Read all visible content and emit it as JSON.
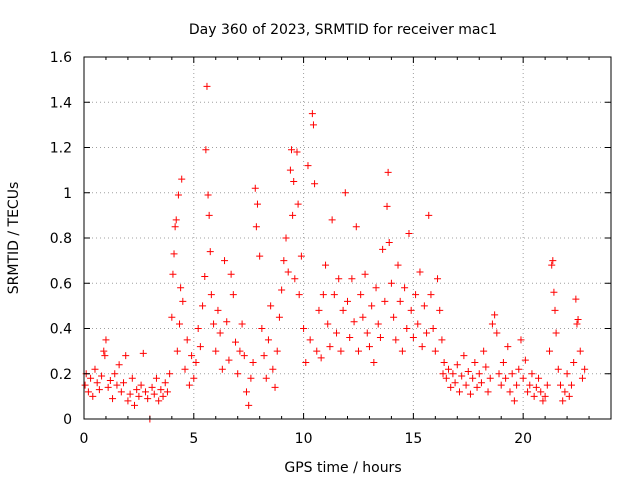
{
  "chart_data": {
    "type": "scatter",
    "title": "Day 360 of 2023, SRMTID for receiver mac1",
    "xlabel": "GPS time / hours",
    "ylabel": "SRMTID / TECUs",
    "xlim": [
      0,
      24
    ],
    "ylim": [
      0,
      1.6
    ],
    "x_ticks": [
      0,
      5,
      10,
      15,
      20
    ],
    "x_tick_labels": [
      "0",
      "5",
      "10",
      "15",
      "20"
    ],
    "y_ticks": [
      0,
      0.2,
      0.4,
      0.6,
      0.8,
      1,
      1.2,
      1.4,
      1.6
    ],
    "y_tick_labels": [
      "0",
      "0.2",
      "0.4",
      "0.6",
      "0.8",
      "1",
      "1.2",
      "1.4",
      "1.6"
    ],
    "grid": true,
    "marker": "+",
    "series": [
      {
        "name": "SRMTID",
        "color": "#ff0000",
        "points": [
          [
            0.05,
            0.15
          ],
          [
            0.1,
            0.2
          ],
          [
            0.2,
            0.12
          ],
          [
            0.3,
            0.18
          ],
          [
            0.4,
            0.1
          ],
          [
            0.5,
            0.22
          ],
          [
            0.6,
            0.16
          ],
          [
            0.7,
            0.13
          ],
          [
            0.8,
            0.19
          ],
          [
            0.9,
            0.3
          ],
          [
            0.95,
            0.28
          ],
          [
            1.0,
            0.35
          ],
          [
            1.1,
            0.14
          ],
          [
            1.2,
            0.17
          ],
          [
            1.3,
            0.09
          ],
          [
            1.4,
            0.2
          ],
          [
            1.5,
            0.15
          ],
          [
            1.6,
            0.24
          ],
          [
            1.7,
            0.12
          ],
          [
            1.8,
            0.16
          ],
          [
            1.9,
            0.28
          ],
          [
            2.0,
            0.08
          ],
          [
            2.1,
            0.11
          ],
          [
            2.2,
            0.18
          ],
          [
            2.3,
            0.06
          ],
          [
            2.4,
            0.13
          ],
          [
            2.5,
            0.1
          ],
          [
            2.6,
            0.15
          ],
          [
            2.7,
            0.29
          ],
          [
            2.8,
            0.12
          ],
          [
            2.9,
            0.09
          ],
          [
            3.0,
            0.0
          ],
          [
            3.1,
            0.14
          ],
          [
            3.2,
            0.11
          ],
          [
            3.3,
            0.18
          ],
          [
            3.4,
            0.08
          ],
          [
            3.5,
            0.13
          ],
          [
            3.6,
            0.1
          ],
          [
            3.7,
            0.16
          ],
          [
            3.8,
            0.12
          ],
          [
            3.9,
            0.2
          ],
          [
            4.0,
            0.45
          ],
          [
            4.05,
            0.64
          ],
          [
            4.1,
            0.73
          ],
          [
            4.15,
            0.85
          ],
          [
            4.2,
            0.88
          ],
          [
            4.25,
            0.3
          ],
          [
            4.3,
            0.99
          ],
          [
            4.35,
            0.42
          ],
          [
            4.4,
            0.58
          ],
          [
            4.45,
            1.06
          ],
          [
            4.5,
            0.52
          ],
          [
            4.6,
            0.22
          ],
          [
            4.7,
            0.35
          ],
          [
            4.8,
            0.15
          ],
          [
            4.9,
            0.28
          ],
          [
            5.0,
            0.18
          ],
          [
            5.1,
            0.25
          ],
          [
            5.2,
            0.4
          ],
          [
            5.3,
            0.32
          ],
          [
            5.4,
            0.5
          ],
          [
            5.5,
            0.63
          ],
          [
            5.55,
            1.19
          ],
          [
            5.6,
            1.47
          ],
          [
            5.65,
            0.99
          ],
          [
            5.7,
            0.9
          ],
          [
            5.75,
            0.74
          ],
          [
            5.8,
            0.55
          ],
          [
            5.9,
            0.42
          ],
          [
            6.0,
            0.3
          ],
          [
            6.1,
            0.48
          ],
          [
            6.2,
            0.38
          ],
          [
            6.3,
            0.22
          ],
          [
            6.4,
            0.7
          ],
          [
            6.5,
            0.43
          ],
          [
            6.6,
            0.26
          ],
          [
            6.7,
            0.64
          ],
          [
            6.8,
            0.55
          ],
          [
            6.9,
            0.34
          ],
          [
            7.0,
            0.2
          ],
          [
            7.1,
            0.3
          ],
          [
            7.2,
            0.42
          ],
          [
            7.3,
            0.28
          ],
          [
            7.4,
            0.12
          ],
          [
            7.5,
            0.06
          ],
          [
            7.6,
            0.18
          ],
          [
            7.7,
            0.25
          ],
          [
            7.8,
            1.02
          ],
          [
            7.85,
            0.85
          ],
          [
            7.9,
            0.95
          ],
          [
            8.0,
            0.72
          ],
          [
            8.1,
            0.4
          ],
          [
            8.2,
            0.28
          ],
          [
            8.3,
            0.18
          ],
          [
            8.4,
            0.35
          ],
          [
            8.5,
            0.5
          ],
          [
            8.6,
            0.22
          ],
          [
            8.7,
            0.14
          ],
          [
            8.8,
            0.3
          ],
          [
            8.9,
            0.45
          ],
          [
            9.0,
            0.57
          ],
          [
            9.1,
            0.7
          ],
          [
            9.2,
            0.8
          ],
          [
            9.3,
            0.65
          ],
          [
            9.4,
            1.1
          ],
          [
            9.45,
            1.19
          ],
          [
            9.5,
            0.9
          ],
          [
            9.55,
            1.05
          ],
          [
            9.6,
            0.62
          ],
          [
            9.7,
            1.18
          ],
          [
            9.75,
            0.95
          ],
          [
            9.8,
            0.55
          ],
          [
            9.9,
            0.72
          ],
          [
            10.0,
            0.4
          ],
          [
            10.1,
            0.25
          ],
          [
            10.2,
            1.12
          ],
          [
            10.3,
            0.35
          ],
          [
            10.4,
            1.35
          ],
          [
            10.45,
            1.3
          ],
          [
            10.5,
            1.04
          ],
          [
            10.6,
            0.3
          ],
          [
            10.7,
            0.48
          ],
          [
            10.8,
            0.27
          ],
          [
            10.9,
            0.55
          ],
          [
            11.0,
            0.68
          ],
          [
            11.1,
            0.42
          ],
          [
            11.2,
            0.32
          ],
          [
            11.3,
            0.88
          ],
          [
            11.4,
            0.55
          ],
          [
            11.5,
            0.38
          ],
          [
            11.6,
            0.62
          ],
          [
            11.7,
            0.3
          ],
          [
            11.8,
            0.48
          ],
          [
            11.9,
            1.0
          ],
          [
            12.0,
            0.52
          ],
          [
            12.1,
            0.36
          ],
          [
            12.2,
            0.62
          ],
          [
            12.3,
            0.43
          ],
          [
            12.4,
            0.85
          ],
          [
            12.5,
            0.3
          ],
          [
            12.6,
            0.55
          ],
          [
            12.7,
            0.45
          ],
          [
            12.8,
            0.64
          ],
          [
            12.9,
            0.38
          ],
          [
            13.0,
            0.32
          ],
          [
            13.1,
            0.5
          ],
          [
            13.2,
            0.25
          ],
          [
            13.3,
            0.58
          ],
          [
            13.4,
            0.42
          ],
          [
            13.5,
            0.36
          ],
          [
            13.6,
            0.75
          ],
          [
            13.7,
            0.52
          ],
          [
            13.8,
            0.94
          ],
          [
            13.85,
            1.09
          ],
          [
            13.9,
            0.78
          ],
          [
            14.0,
            0.6
          ],
          [
            14.1,
            0.45
          ],
          [
            14.2,
            0.35
          ],
          [
            14.3,
            0.68
          ],
          [
            14.4,
            0.52
          ],
          [
            14.5,
            0.3
          ],
          [
            14.6,
            0.58
          ],
          [
            14.7,
            0.4
          ],
          [
            14.8,
            0.82
          ],
          [
            14.9,
            0.48
          ],
          [
            15.0,
            0.36
          ],
          [
            15.1,
            0.55
          ],
          [
            15.2,
            0.42
          ],
          [
            15.3,
            0.65
          ],
          [
            15.4,
            0.32
          ],
          [
            15.5,
            0.5
          ],
          [
            15.6,
            0.38
          ],
          [
            15.7,
            0.9
          ],
          [
            15.8,
            0.55
          ],
          [
            15.9,
            0.4
          ],
          [
            16.0,
            0.3
          ],
          [
            16.1,
            0.62
          ],
          [
            16.2,
            0.48
          ],
          [
            16.3,
            0.35
          ],
          [
            16.35,
            0.2
          ],
          [
            16.4,
            0.25
          ],
          [
            16.5,
            0.18
          ],
          [
            16.6,
            0.22
          ],
          [
            16.7,
            0.14
          ],
          [
            16.8,
            0.2
          ],
          [
            16.9,
            0.16
          ],
          [
            17.0,
            0.24
          ],
          [
            17.1,
            0.12
          ],
          [
            17.2,
            0.19
          ],
          [
            17.3,
            0.28
          ],
          [
            17.4,
            0.15
          ],
          [
            17.5,
            0.21
          ],
          [
            17.6,
            0.11
          ],
          [
            17.7,
            0.18
          ],
          [
            17.8,
            0.25
          ],
          [
            17.9,
            0.14
          ],
          [
            18.0,
            0.2
          ],
          [
            18.1,
            0.16
          ],
          [
            18.2,
            0.3
          ],
          [
            18.3,
            0.23
          ],
          [
            18.4,
            0.12
          ],
          [
            18.5,
            0.18
          ],
          [
            18.6,
            0.42
          ],
          [
            18.7,
            0.46
          ],
          [
            18.8,
            0.38
          ],
          [
            18.9,
            0.2
          ],
          [
            19.0,
            0.15
          ],
          [
            19.1,
            0.25
          ],
          [
            19.2,
            0.18
          ],
          [
            19.3,
            0.32
          ],
          [
            19.4,
            0.12
          ],
          [
            19.5,
            0.2
          ],
          [
            19.6,
            0.08
          ],
          [
            19.7,
            0.15
          ],
          [
            19.8,
            0.22
          ],
          [
            19.9,
            0.35
          ],
          [
            20.0,
            0.18
          ],
          [
            20.1,
            0.26
          ],
          [
            20.2,
            0.12
          ],
          [
            20.3,
            0.15
          ],
          [
            20.4,
            0.2
          ],
          [
            20.5,
            0.1
          ],
          [
            20.6,
            0.14
          ],
          [
            20.7,
            0.18
          ],
          [
            20.8,
            0.12
          ],
          [
            20.9,
            0.08
          ],
          [
            21.0,
            0.1
          ],
          [
            21.1,
            0.15
          ],
          [
            21.2,
            0.3
          ],
          [
            21.3,
            0.68
          ],
          [
            21.35,
            0.7
          ],
          [
            21.4,
            0.56
          ],
          [
            21.45,
            0.48
          ],
          [
            21.5,
            0.38
          ],
          [
            21.6,
            0.22
          ],
          [
            21.7,
            0.15
          ],
          [
            21.8,
            0.08
          ],
          [
            21.9,
            0.12
          ],
          [
            22.0,
            0.2
          ],
          [
            22.1,
            0.1
          ],
          [
            22.2,
            0.15
          ],
          [
            22.3,
            0.25
          ],
          [
            22.4,
            0.53
          ],
          [
            22.45,
            0.42
          ],
          [
            22.5,
            0.44
          ],
          [
            22.6,
            0.3
          ],
          [
            22.7,
            0.18
          ],
          [
            22.8,
            0.22
          ]
        ]
      }
    ]
  }
}
